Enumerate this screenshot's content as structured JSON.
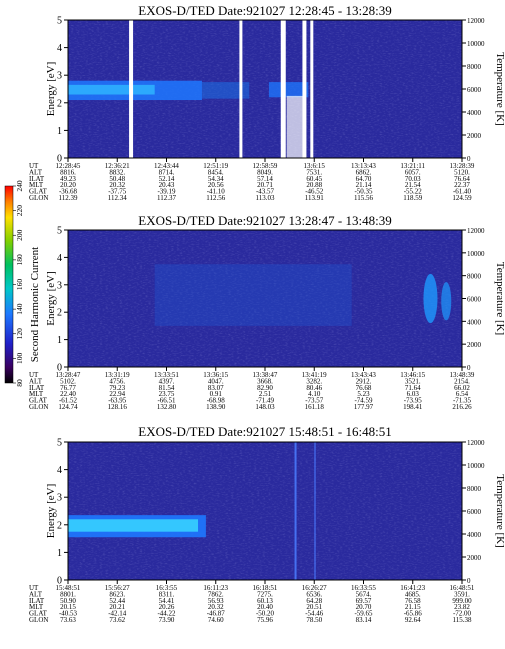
{
  "colorbar": {
    "label": "Second Harmonic Current",
    "ticks": [
      "80",
      "100",
      "120",
      "140",
      "160",
      "180",
      "200",
      "220",
      "240"
    ],
    "colors": [
      "#000000",
      "#3a0060",
      "#2020c8",
      "#1e78ff",
      "#00c8c8",
      "#00c060",
      "#80d000",
      "#ffe000",
      "#ff8000",
      "#ff0000"
    ]
  },
  "chart_data": [
    {
      "type": "heatmap",
      "title": "EXOS-D/TED   Date:921027   12:28:45 - 13:28:39",
      "ylabel": "Energy [eV]",
      "y2label": "Temperature [K]",
      "ylim": [
        0,
        5
      ],
      "y2lim": [
        0,
        12000
      ],
      "yticks": [
        "0",
        "1",
        "2",
        "3",
        "4",
        "5"
      ],
      "y2ticks": [
        "0",
        "2000",
        "4000",
        "6000",
        "8000",
        "10000",
        "12000"
      ],
      "row_labels": [
        "UT",
        "ALT",
        "ILAT",
        "MLT",
        "GLAT",
        "GLON"
      ],
      "columns": [
        [
          "12:28:45",
          "8816.",
          "49.23",
          "20.20",
          "-36.68",
          "112.39"
        ],
        [
          "12:36:21",
          "8832.",
          "50.48",
          "20.32",
          "-37.75",
          "112.34"
        ],
        [
          "12:43:44",
          "8714.",
          "52.14",
          "20.43",
          "-39.19",
          "112.37"
        ],
        [
          "12:51:19",
          "8454.",
          "54.34",
          "20.56",
          "-41.10",
          "112.56"
        ],
        [
          "12:58:59",
          "8049.",
          "57.14",
          "20.71",
          "-43.57",
          "113.03"
        ],
        [
          "13:6:15",
          "7531.",
          "60.45",
          "20.88",
          "-46.52",
          "113.91"
        ],
        [
          "13:13:43",
          "6862.",
          "64.70",
          "21.14",
          "-50.35",
          "115.56"
        ],
        [
          "13:21:11",
          "6057.",
          "70.03",
          "21.54",
          "-55.22",
          "118.59"
        ],
        [
          "13:28:39",
          "5120.",
          "76.64",
          "22.37",
          "-61.40",
          "124.59"
        ]
      ]
    },
    {
      "type": "heatmap",
      "title": "EXOS-D/TED   Date:921027   13:28:47 - 13:48:39",
      "ylabel": "Energy [eV]",
      "y2label": "Temperature [K]",
      "ylim": [
        0,
        5
      ],
      "y2lim": [
        0,
        12000
      ],
      "yticks": [
        "0",
        "1",
        "2",
        "3",
        "4",
        "5"
      ],
      "y2ticks": [
        "0",
        "2000",
        "4000",
        "6000",
        "8000",
        "10000",
        "12000"
      ],
      "row_labels": [
        "UT",
        "ALT",
        "ILAT",
        "MLT",
        "GLAT",
        "GLON"
      ],
      "columns": [
        [
          "13:28:47",
          "5102.",
          "76.77",
          "22.40",
          "-61.52",
          "124.74"
        ],
        [
          "13:31:19",
          "4756.",
          "79.23",
          "22.94",
          "-63.95",
          "128.16"
        ],
        [
          "13:33:51",
          "4397.",
          "81.54",
          "23.75",
          "-66.51",
          "132.80"
        ],
        [
          "13:36:15",
          "4047.",
          "83.07",
          "0.91",
          "-68.98",
          "138.90"
        ],
        [
          "13:38:47",
          "3668.",
          "82.90",
          "2.51",
          "-71.49",
          "148.03"
        ],
        [
          "13:41:19",
          "3282.",
          "80.46",
          "4.10",
          "-73.57",
          "161.18"
        ],
        [
          "13:43:43",
          "2912.",
          "76.68",
          "5.23",
          "-74.59",
          "177.97"
        ],
        [
          "13:46:15",
          "3521.",
          "71.64",
          "6.03",
          "-73.95",
          "198.41"
        ],
        [
          "13:48:39",
          "2154.",
          "66.02",
          "6.54",
          "-71.35",
          "216.26"
        ]
      ]
    },
    {
      "type": "heatmap",
      "title": "EXOS-D/TED   Date:921027   15:48:51 - 16:48:51",
      "ylabel": "Energy [eV]",
      "y2label": "Temperature [K]",
      "ylim": [
        0,
        5
      ],
      "y2lim": [
        0,
        12000
      ],
      "yticks": [
        "0",
        "1",
        "2",
        "3",
        "4",
        "5"
      ],
      "y2ticks": [
        "0",
        "2000",
        "4000",
        "6000",
        "8000",
        "10000",
        "12000"
      ],
      "row_labels": [
        "UT",
        "ALT",
        "ILAT",
        "MLT",
        "GLAT",
        "GLON"
      ],
      "columns": [
        [
          "15:48:51",
          "8801.",
          "50.90",
          "20.15",
          "-40.53",
          "73.63"
        ],
        [
          "15:56:27",
          "8623.",
          "52.44",
          "20.21",
          "-42.14",
          "73.62"
        ],
        [
          "16:3:55",
          "8311.",
          "54.41",
          "20.26",
          "-44.22",
          "73.90"
        ],
        [
          "16:11:23",
          "7862.",
          "56.93",
          "20.32",
          "-46.87",
          "74.60"
        ],
        [
          "16:18:51",
          "7275.",
          "60.13",
          "20.40",
          "-50.20",
          "75.96"
        ],
        [
          "16:26:27",
          "6536.",
          "64.28",
          "20.51",
          "-54.46",
          "78.50"
        ],
        [
          "16:33:55",
          "5674.",
          "69.57",
          "20.70",
          "-59.65",
          "83.14"
        ],
        [
          "16:41:23",
          "4685.",
          "76.58",
          "21.15",
          "-65.86",
          "92.64"
        ],
        [
          "16:48:51",
          "3591.",
          "999.00",
          "23.82",
          "-72.00",
          "115.38"
        ]
      ]
    }
  ]
}
